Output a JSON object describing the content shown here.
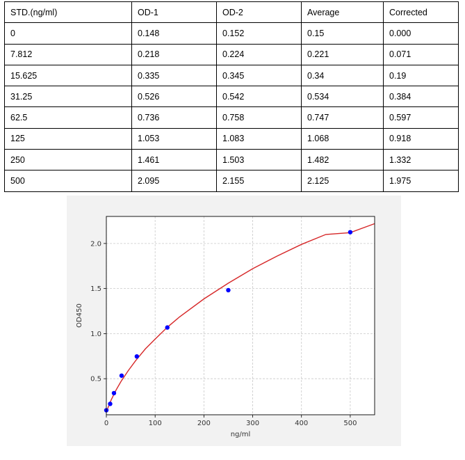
{
  "table": {
    "headers": [
      "STD.(ng/ml)",
      "OD-1",
      "OD-2",
      "Average",
      "Corrected"
    ],
    "rows": [
      [
        "0",
        "0.148",
        "0.152",
        "0.15",
        "0.000"
      ],
      [
        "7.812",
        "0.218",
        "0.224",
        "0.221",
        "0.071"
      ],
      [
        "15.625",
        "0.335",
        "0.345",
        "0.34",
        "0.19"
      ],
      [
        "31.25",
        "0.526",
        "0.542",
        "0.534",
        "0.384"
      ],
      [
        "62.5",
        "0.736",
        "0.758",
        "0.747",
        "0.597"
      ],
      [
        "125",
        "1.053",
        "1.083",
        "1.068",
        "0.918"
      ],
      [
        "250",
        "1.461",
        "1.503",
        "1.482",
        "1.332"
      ],
      [
        "500",
        "2.095",
        "2.155",
        "2.125",
        "1.975"
      ]
    ]
  },
  "chart_data": {
    "type": "scatter",
    "xlabel": "ng/ml",
    "ylabel": "OD450",
    "xlim": [
      0,
      550
    ],
    "ylim": [
      0.1,
      2.3
    ],
    "xticks": [
      0,
      100,
      200,
      300,
      400,
      500
    ],
    "yticks": [
      0.5,
      1.0,
      1.5,
      2.0
    ],
    "grid": true,
    "series": [
      {
        "type": "scatter",
        "color": "#0000ff",
        "x": [
          0,
          7.812,
          15.625,
          31.25,
          62.5,
          125,
          250,
          500
        ],
        "y": [
          0.15,
          0.221,
          0.34,
          0.534,
          0.747,
          1.068,
          1.482,
          2.125
        ]
      },
      {
        "type": "line",
        "color": "#d62728",
        "x": [
          0,
          5,
          10,
          20,
          30,
          45,
          60,
          80,
          100,
          125,
          150,
          200,
          250,
          300,
          350,
          400,
          450,
          500,
          550
        ],
        "y": [
          0.13,
          0.2,
          0.265,
          0.375,
          0.47,
          0.59,
          0.7,
          0.83,
          0.94,
          1.07,
          1.185,
          1.385,
          1.56,
          1.72,
          1.86,
          1.99,
          2.1,
          2.12,
          2.22
        ]
      }
    ]
  }
}
